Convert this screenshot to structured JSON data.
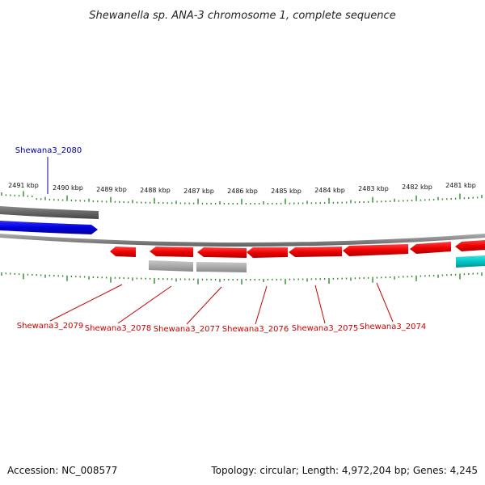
{
  "title": "Shewanella sp. ANA-3 chromosome 1, complete sequence",
  "footer": {
    "accession": "Accession: NC_008577",
    "summary": "Topology: circular; Length: 4,972,204 bp; Genes: 4,245"
  },
  "colors": {
    "tick": "#2e8b2e",
    "backbone": "#808080",
    "forward_gene": "#ff0000",
    "reverse_gene": "#ff0000",
    "highlight_gene": "#0000cc",
    "gray_feature": "#a8a8a8",
    "dark_feature": "#6a6a6a",
    "cyan_feature": "#00c8c8",
    "label_red": "#cc0000",
    "label_blue": "#000099"
  },
  "scale_labels": [
    "2491 kbp",
    "2490 kbp",
    "2489 kbp",
    "2488 kbp",
    "2487 kbp",
    "2486 kbp",
    "2485 kbp",
    "2484 kbp",
    "2483 kbp",
    "2482 kbp",
    "2481 kbp"
  ],
  "gene_labels": [
    {
      "text": "Shewana3_2080",
      "color": "blue"
    },
    {
      "text": "Shewana3_2079",
      "color": "red"
    },
    {
      "text": "Shewana3_2078",
      "color": "red"
    },
    {
      "text": "Shewana3_2077",
      "color": "red"
    },
    {
      "text": "Shewana3_2076",
      "color": "red"
    },
    {
      "text": "Shewana3_2075",
      "color": "red"
    },
    {
      "text": "Shewana3_2074",
      "color": "red"
    }
  ]
}
